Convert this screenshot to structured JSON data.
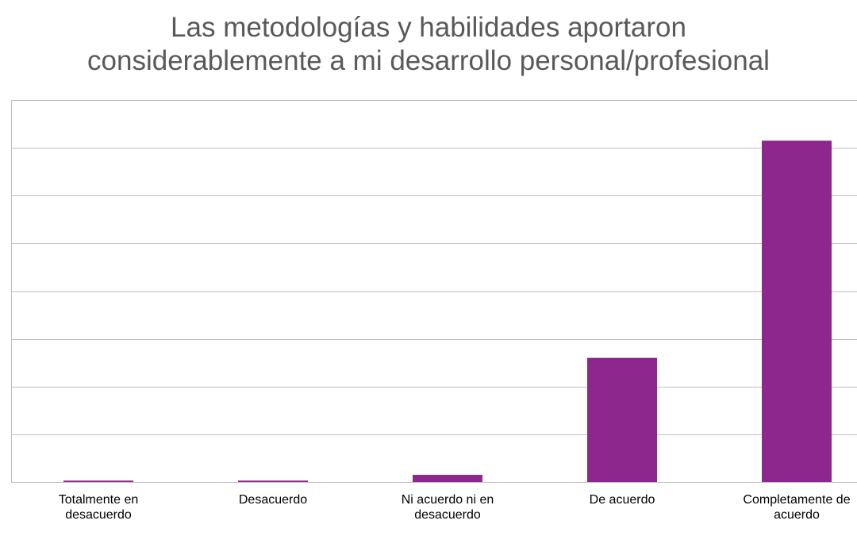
{
  "chart_data": {
    "type": "bar",
    "title": [
      "Las metodologías y habilidades aportaron",
      "considerablemente a mi desarrollo personal/profesional"
    ],
    "categories": [
      [
        "Totalmente en",
        "desacuerdo"
      ],
      [
        "Desacuerdo"
      ],
      [
        "Ni acuerdo ni en",
        "desacuerdo"
      ],
      [
        "De acuerdo"
      ],
      [
        "Completamente de",
        "acuerdo"
      ]
    ],
    "values": [
      0.3,
      0.3,
      1.5,
      26,
      71.5
    ],
    "ylim": [
      0,
      80
    ],
    "gridlines": true,
    "xlabel": "",
    "ylabel": "",
    "bar_color": "#8E278D",
    "grid_color": "#BFBFBF"
  }
}
